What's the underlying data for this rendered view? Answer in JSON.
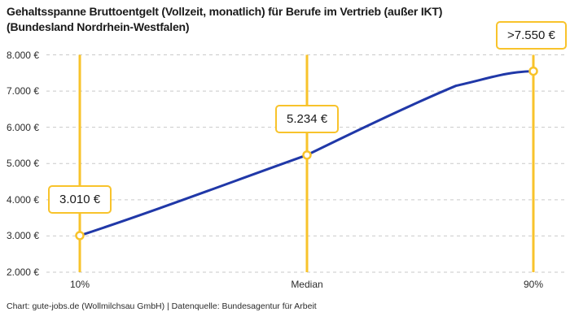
{
  "title": {
    "line1": "Gehaltsspanne Bruttoentgelt (Vollzeit, monatlich) für Berufe im Vertrieb (außer IKT)",
    "line2": "(Bundesland Nordrhein-Westfalen)"
  },
  "footer": "Chart: gute-jobs.de (Wollmilchsau GmbH) | Datenquelle: Bundesagentur für Arbeit",
  "colors": {
    "accent_gold": "#F8C32B",
    "line_blue": "#2038A8",
    "grid_gray": "#C9C9C9",
    "text_dark": "#1A1A1A"
  },
  "chart_data": {
    "type": "line",
    "title": "Gehaltsspanne Bruttoentgelt (Vollzeit, monatlich) für Berufe im Vertrieb (außer IKT) (Bundesland Nordrhein-Westfalen)",
    "categories": [
      "10%",
      "Median",
      "90%"
    ],
    "values": [
      3010,
      5234,
      7550
    ],
    "value_labels": [
      "3.010 €",
      "5.234 €",
      ">7.550 €"
    ],
    "y_tick_labels": [
      "8.000 €",
      "7.000 €",
      "6.000 €",
      "5.000 €",
      "4.000 €",
      "3.000 €",
      "2.000 €"
    ],
    "y_tick_values": [
      8000,
      7000,
      6000,
      5000,
      4000,
      3000,
      2000
    ],
    "ylim": [
      2000,
      8000
    ],
    "xlabel": "",
    "ylabel": "",
    "grid": "horizontal-dashed",
    "legend": "none",
    "markers": "vertical gold line with open circle at each category; value shown in gold-bordered box above point"
  }
}
